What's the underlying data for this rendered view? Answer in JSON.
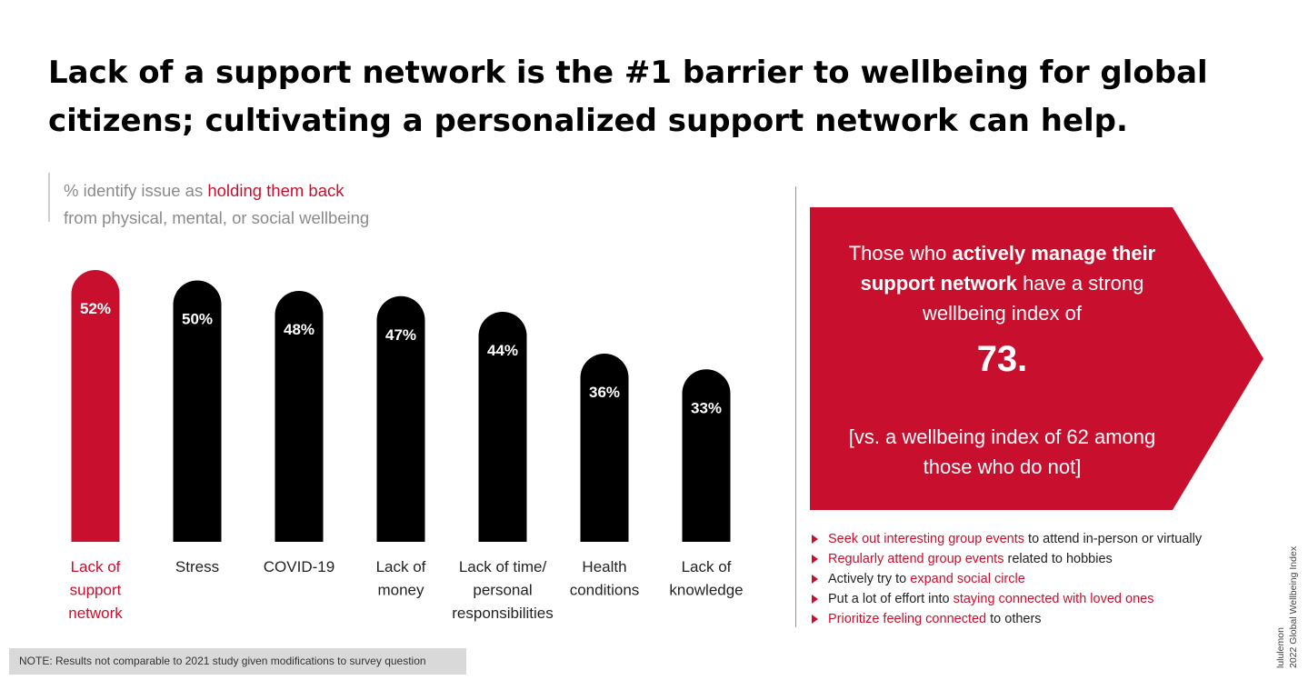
{
  "title": "Lack of a support network is the #1 barrier to wellbeing for global citizens; cultivating a personalized support network can help.",
  "subtitle": {
    "prefix": "% identify issue as ",
    "highlight": "holding them back",
    "line2": "from physical, mental, or social wellbeing"
  },
  "chart_data": {
    "type": "bar",
    "categories": [
      "Lack of support network",
      "Stress",
      "COVID-19",
      "Lack of money",
      "Lack of time/ personal responsibilities",
      "Health conditions",
      "Lack of knowledge"
    ],
    "category_lines": [
      [
        "Lack of",
        "support",
        "network"
      ],
      [
        "Stress"
      ],
      [
        "COVID-19"
      ],
      [
        "Lack of",
        "money"
      ],
      [
        "Lack of time/",
        "personal",
        "responsibilities"
      ],
      [
        "Health",
        "conditions"
      ],
      [
        "Lack of",
        "knowledge"
      ]
    ],
    "values": [
      52,
      50,
      48,
      47,
      44,
      36,
      33
    ],
    "data_labels": [
      "52%",
      "50%",
      "48%",
      "47%",
      "44%",
      "36%",
      "33%"
    ],
    "highlight_index": 0,
    "colors": {
      "highlight": "#c8102e",
      "default": "#000000"
    }
  },
  "callout": {
    "text1": "Those who ",
    "bold": "actively manage their support network",
    "text2": " have a strong wellbeing index of",
    "big_value": "73.",
    "comparison": "[vs. a wellbeing index of 62 among those who do not]",
    "color": "#c8102e"
  },
  "tips": [
    {
      "red": "Seek out interesting group events",
      "before": "",
      "after": " to attend in-person or virtually"
    },
    {
      "red": "Regularly attend group events",
      "before": "",
      "after": " related to hobbies"
    },
    {
      "red": "expand social circle",
      "before": "Actively try to ",
      "after": ""
    },
    {
      "red": "staying connected with loved ones",
      "before": "Put a lot of effort into ",
      "after": ""
    },
    {
      "red": "Prioritize feeling connected",
      "before": "",
      "after": " to others"
    }
  ],
  "note": "NOTE: Results not comparable to 2021 study given modifications to survey question",
  "source": {
    "line1": "lululemon",
    "line2": "2022 Global Wellbeing Index"
  }
}
